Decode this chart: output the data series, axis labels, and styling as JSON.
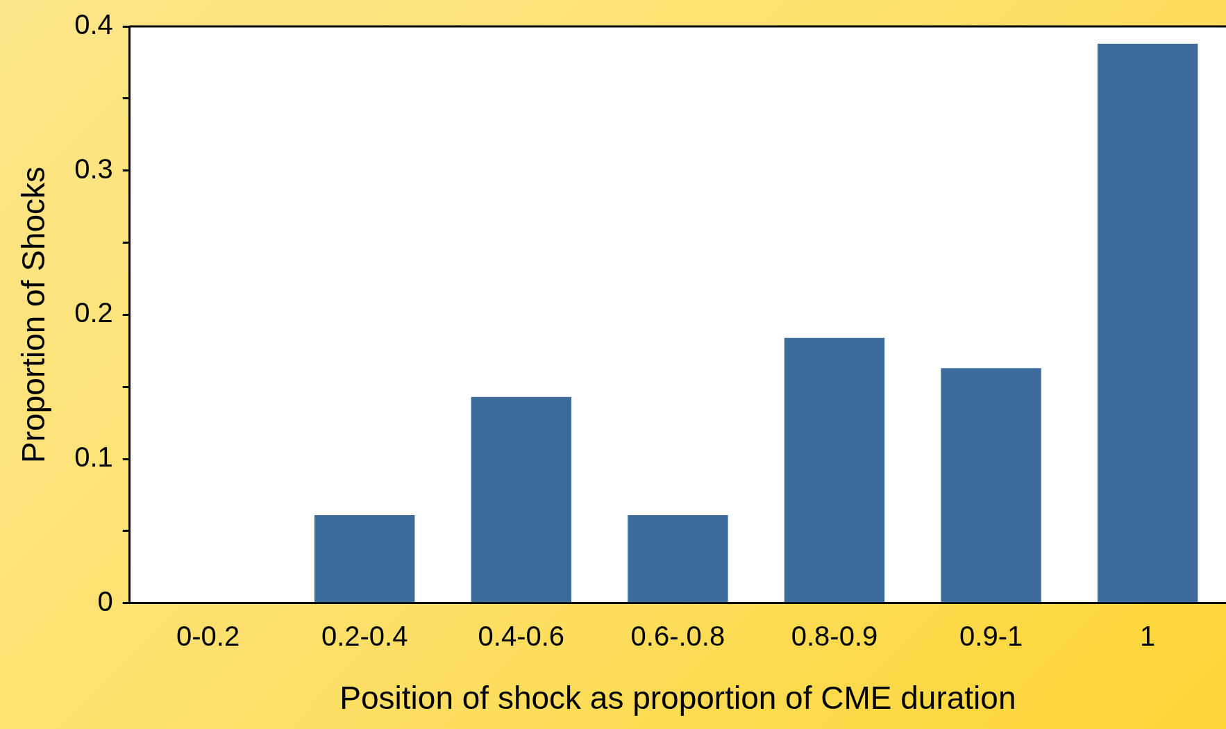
{
  "chart_data": {
    "type": "bar",
    "xlabel": "Position of shock as proportion of CME duration",
    "ylabel": "Proportion of Shocks",
    "categories": [
      "0-0.2",
      "0.2-0.4",
      "0.4-0.6",
      "0.6-.0.8",
      "0.8-0.9",
      "0.9-1",
      "1"
    ],
    "values": [
      0,
      0.061,
      0.143,
      0.061,
      0.184,
      0.163,
      0.388
    ],
    "color": "#3d6b9b",
    "ylim": [
      0,
      0.4
    ],
    "yticks": [
      0,
      {
        "value": 0.05,
        "label": null
      },
      0.1,
      {
        "value": 0.15,
        "label": null
      },
      0.2,
      {
        "value": 0.25,
        "label": null
      },
      0.3,
      {
        "value": 0.35,
        "label": null
      },
      0.4
    ]
  }
}
